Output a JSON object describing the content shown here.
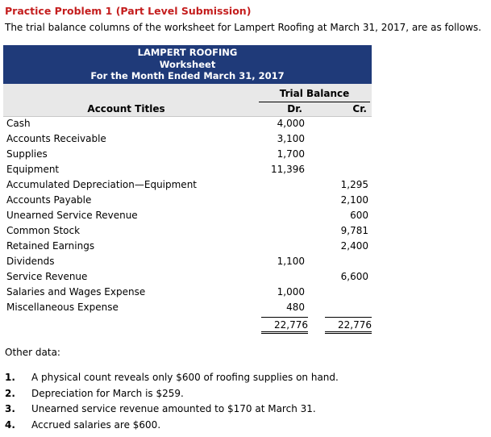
{
  "title": "Practice Problem 1 (Part Level Submission)",
  "intro": "The trial balance columns of the worksheet for Lampert Roofing at March 31, 2017, are as follows.",
  "worksheet": {
    "company": "LAMPERT ROOFING",
    "name": "Worksheet",
    "period": "For the Month Ended March 31, 2017",
    "tb_label": "Trial Balance",
    "account_titles_label": "Account Titles",
    "dr_label": "Dr.",
    "cr_label": "Cr.",
    "rows": [
      {
        "account": "Cash",
        "dr": "4,000",
        "cr": ""
      },
      {
        "account": "Accounts Receivable",
        "dr": "3,100",
        "cr": ""
      },
      {
        "account": "Supplies",
        "dr": "1,700",
        "cr": ""
      },
      {
        "account": "Equipment",
        "dr": "11,396",
        "cr": ""
      },
      {
        "account": "Accumulated Depreciation—Equipment",
        "dr": "",
        "cr": "1,295"
      },
      {
        "account": "Accounts Payable",
        "dr": "",
        "cr": "2,100"
      },
      {
        "account": "Unearned Service Revenue",
        "dr": "",
        "cr": "600"
      },
      {
        "account": "Common Stock",
        "dr": "",
        "cr": "9,781"
      },
      {
        "account": "Retained Earnings",
        "dr": "",
        "cr": "2,400"
      },
      {
        "account": "Dividends",
        "dr": "1,100",
        "cr": ""
      },
      {
        "account": "Service Revenue",
        "dr": "",
        "cr": "6,600"
      },
      {
        "account": "Salaries and Wages Expense",
        "dr": "1,000",
        "cr": ""
      },
      {
        "account": "Miscellaneous Expense",
        "dr": "480",
        "cr": ""
      }
    ],
    "total_dr": "22,776",
    "total_cr": "22,776"
  },
  "other_label": "Other data:",
  "other_items": [
    {
      "num": "1.",
      "text": "A physical count reveals only $600 of roofing supplies on hand."
    },
    {
      "num": "2.",
      "text": "Depreciation for March is $259."
    },
    {
      "num": "3.",
      "text": "Unearned service revenue amounted to $170 at March 31."
    },
    {
      "num": "4.",
      "text": "Accrued salaries are $600."
    }
  ],
  "colors": {
    "title": "#c41e1e",
    "header_bg": "#1f3a79",
    "colhead_bg": "#e8e8e8"
  }
}
